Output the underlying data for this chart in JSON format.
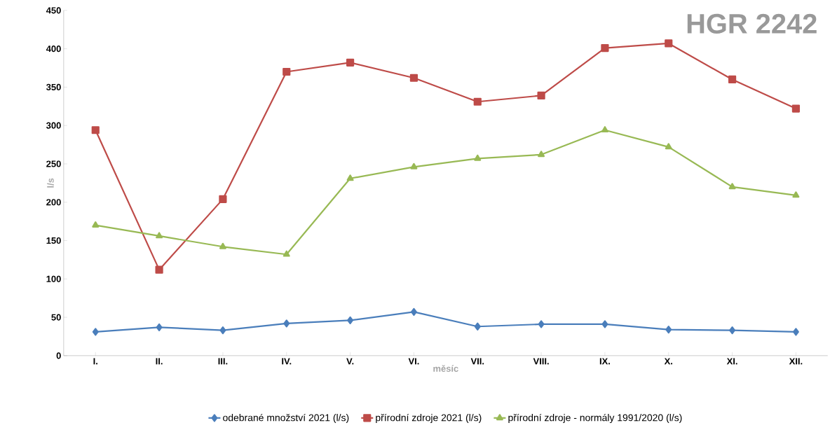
{
  "chart_data": {
    "type": "line",
    "title": "HGR 2242",
    "xlabel": "měsíc",
    "ylabel": "l/s",
    "categories": [
      "I.",
      "II.",
      "III.",
      "IV.",
      "V.",
      "VI.",
      "VII.",
      "VIII.",
      "IX.",
      "X.",
      "XI.",
      "XII."
    ],
    "ylim": [
      0,
      450
    ],
    "yticks": [
      0,
      50,
      100,
      150,
      200,
      250,
      300,
      350,
      400,
      450
    ],
    "legend": "bottom",
    "line_style": "solid",
    "series": [
      {
        "name": "odebrané množství 2021 (l/s)",
        "color": "#4a7ebb",
        "marker": "diamond",
        "values": [
          31,
          37,
          33,
          42,
          46,
          57,
          38,
          41,
          41,
          34,
          33,
          31
        ]
      },
      {
        "name": "přírodní zdroje 2021 (l/s)",
        "color": "#be4b48",
        "marker": "square",
        "values": [
          294,
          112,
          204,
          370,
          382,
          362,
          331,
          339,
          401,
          407,
          360,
          322
        ]
      },
      {
        "name": "přírodní zdroje - normály 1991/2020 (l/s)",
        "color": "#98b954",
        "marker": "triangle",
        "values": [
          170,
          156,
          142,
          132,
          231,
          246,
          257,
          262,
          294,
          272,
          220,
          209
        ]
      }
    ]
  }
}
